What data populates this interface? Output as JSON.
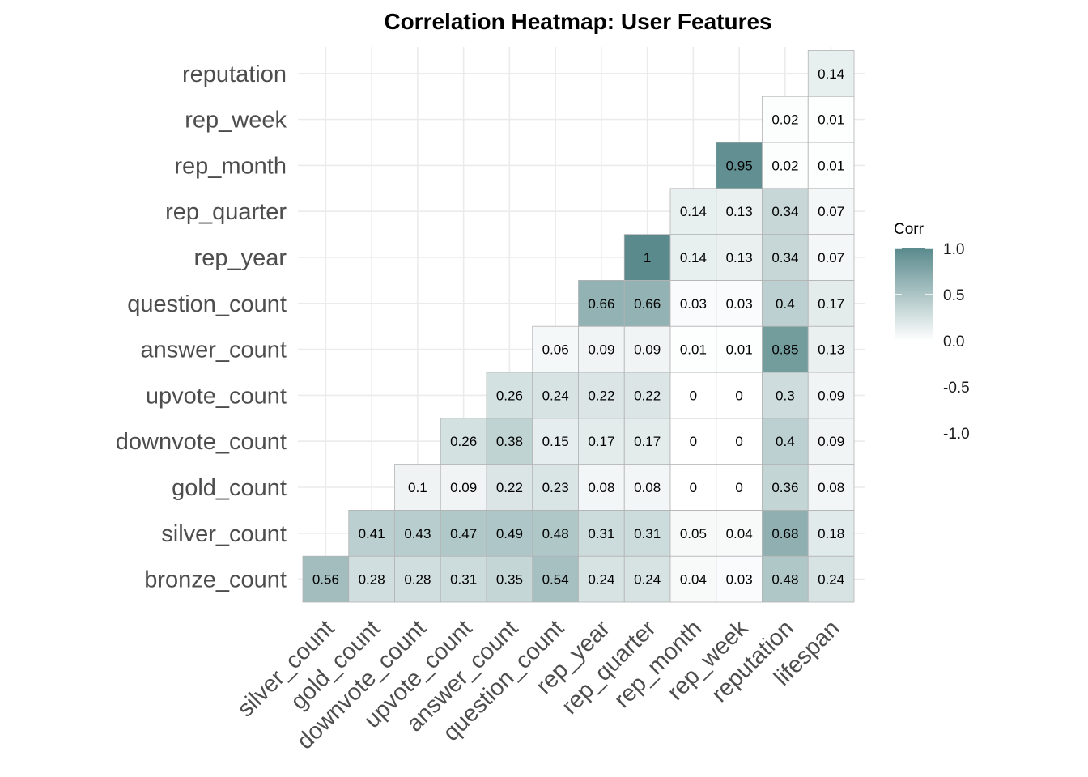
{
  "chart_data": {
    "type": "heatmap",
    "title": "Correlation Heatmap: User Features",
    "x_categories": [
      "silver_count",
      "gold_count",
      "downvote_count",
      "upvote_count",
      "answer_count",
      "question_count",
      "rep_year",
      "rep_quarter",
      "rep_month",
      "rep_week",
      "reputation",
      "lifespan"
    ],
    "y_categories": [
      "bronze_count",
      "silver_count",
      "gold_count",
      "downvote_count",
      "upvote_count",
      "answer_count",
      "question_count",
      "rep_year",
      "rep_quarter",
      "rep_month",
      "rep_week",
      "reputation"
    ],
    "rows": [
      {
        "y": "bronze_count",
        "values": [
          0.56,
          0.28,
          0.28,
          0.31,
          0.35,
          0.54,
          0.24,
          0.24,
          0.04,
          0.03,
          0.48,
          0.24
        ]
      },
      {
        "y": "silver_count",
        "values": [
          null,
          0.41,
          0.43,
          0.47,
          0.49,
          0.48,
          0.31,
          0.31,
          0.05,
          0.04,
          0.68,
          0.18
        ]
      },
      {
        "y": "gold_count",
        "values": [
          null,
          null,
          0.1,
          0.09,
          0.22,
          0.23,
          0.08,
          0.08,
          0,
          0,
          0.36,
          0.08
        ]
      },
      {
        "y": "downvote_count",
        "values": [
          null,
          null,
          null,
          0.26,
          0.38,
          0.15,
          0.17,
          0.17,
          0,
          0,
          0.4,
          0.09
        ]
      },
      {
        "y": "upvote_count",
        "values": [
          null,
          null,
          null,
          null,
          0.26,
          0.24,
          0.22,
          0.22,
          0,
          0,
          0.3,
          0.09
        ]
      },
      {
        "y": "answer_count",
        "values": [
          null,
          null,
          null,
          null,
          null,
          0.06,
          0.09,
          0.09,
          0.01,
          0.01,
          0.85,
          0.13
        ]
      },
      {
        "y": "question_count",
        "values": [
          null,
          null,
          null,
          null,
          null,
          null,
          0.66,
          0.66,
          0.03,
          0.03,
          0.4,
          0.17
        ]
      },
      {
        "y": "rep_year",
        "values": [
          null,
          null,
          null,
          null,
          null,
          null,
          null,
          1,
          0.14,
          0.13,
          0.34,
          0.07
        ]
      },
      {
        "y": "rep_quarter",
        "values": [
          null,
          null,
          null,
          null,
          null,
          null,
          null,
          null,
          0.14,
          0.13,
          0.34,
          0.07
        ]
      },
      {
        "y": "rep_month",
        "values": [
          null,
          null,
          null,
          null,
          null,
          null,
          null,
          null,
          null,
          0.95,
          0.02,
          0.01
        ]
      },
      {
        "y": "rep_week",
        "values": [
          null,
          null,
          null,
          null,
          null,
          null,
          null,
          null,
          null,
          null,
          0.02,
          0.01
        ]
      },
      {
        "y": "reputation",
        "values": [
          null,
          null,
          null,
          null,
          null,
          null,
          null,
          null,
          null,
          null,
          null,
          0.14
        ]
      }
    ],
    "legend": {
      "title": "Corr",
      "ticks": [
        "1.0",
        "0.5",
        "0.0",
        "-0.5",
        "-1.0"
      ],
      "tick_values": [
        1.0,
        0.5,
        0.0,
        -0.5,
        -1.0
      ],
      "placement": "right",
      "color_high": "#5a8a8c",
      "color_mid": "#ffffff"
    },
    "value_range": [
      -1,
      1
    ],
    "grid": true
  }
}
